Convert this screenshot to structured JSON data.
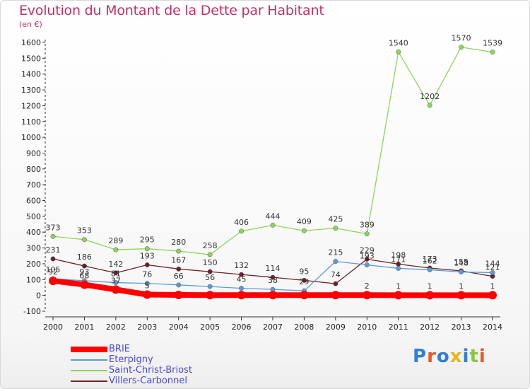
{
  "title": "Evolution du Montant de la Dette par Habitant",
  "subtitle": "(en €)",
  "logo": {
    "text": "Proxiti",
    "letter_colors": [
      "#2f7fd8",
      "#e85a24",
      "#2f7fd8",
      "#e8b51a",
      "#2f7fd8",
      "#8cc63f",
      "#e85a24"
    ]
  },
  "chart_data": {
    "type": "line",
    "title": "Evolution du Montant de la Dette par Habitant",
    "ylabel": "(en €)",
    "xlabel": "",
    "ylim": [
      -100,
      1600
    ],
    "yticks": [
      -100,
      0,
      100,
      200,
      300,
      400,
      500,
      600,
      700,
      800,
      900,
      1000,
      1100,
      1200,
      1300,
      1400,
      1500,
      1600
    ],
    "x": [
      "2000",
      "2001",
      "2002",
      "2003",
      "2004",
      "2005",
      "2006",
      "2007",
      "2008",
      "2009",
      "2010",
      "2011",
      "2012",
      "2013",
      "2014"
    ],
    "grid": false,
    "legend_position": "bottom-left",
    "series": [
      {
        "name": "Villers-Carbonnel",
        "color": "#6e1f2b",
        "values": [
          231,
          186,
          142,
          193,
          167,
          150,
          132,
          114,
          95,
          74,
          229,
          198,
          173,
          155,
          121
        ],
        "labels": [
          "231",
          "186",
          "142",
          "193",
          "167",
          "150",
          "132",
          "114",
          "95",
          "74",
          "229",
          "198",
          "173",
          "155",
          "121"
        ]
      },
      {
        "name": "Saint-Christ-Briost",
        "color": "#8ed45c",
        "values": [
          373,
          353,
          289,
          295,
          280,
          258,
          406,
          444,
          409,
          425,
          389,
          1540,
          1202,
          1570,
          1539
        ],
        "labels": [
          "373",
          "353",
          "289",
          "295",
          "280",
          "258",
          "406",
          "444",
          "409",
          "425",
          "389",
          "1540",
          "1202",
          "1570",
          "1539"
        ]
      },
      {
        "name": "Eterpigny",
        "color": "#5b9bd5",
        "values": [
          105,
          93,
          81,
          76,
          66,
          56,
          45,
          38,
          29,
          215,
          193,
          171,
          162,
          148,
          144
        ],
        "labels": [
          "105",
          "93",
          "81",
          "76",
          "66",
          "56",
          "45",
          "38",
          "29",
          "215",
          "193",
          "171",
          "162",
          "148",
          "144"
        ]
      },
      {
        "name": "BRIE",
        "color": "#ff0000",
        "values": [
          92,
          68,
          37,
          5,
          3,
          2,
          2,
          2,
          2,
          2,
          2,
          1,
          1,
          1,
          1
        ],
        "labels": [
          "92",
          "68",
          "37",
          "5",
          "",
          "",
          "",
          "",
          "",
          "",
          "2",
          "1",
          "1",
          "1",
          "1"
        ]
      }
    ]
  },
  "legend": [
    {
      "name": "BRIE",
      "color": "#ff0000"
    },
    {
      "name": "Eterpigny",
      "color": "#5b9bd5"
    },
    {
      "name": "Saint-Christ-Briost",
      "color": "#8ed45c"
    },
    {
      "name": "Villers-Carbonnel",
      "color": "#6e1f2b"
    }
  ]
}
